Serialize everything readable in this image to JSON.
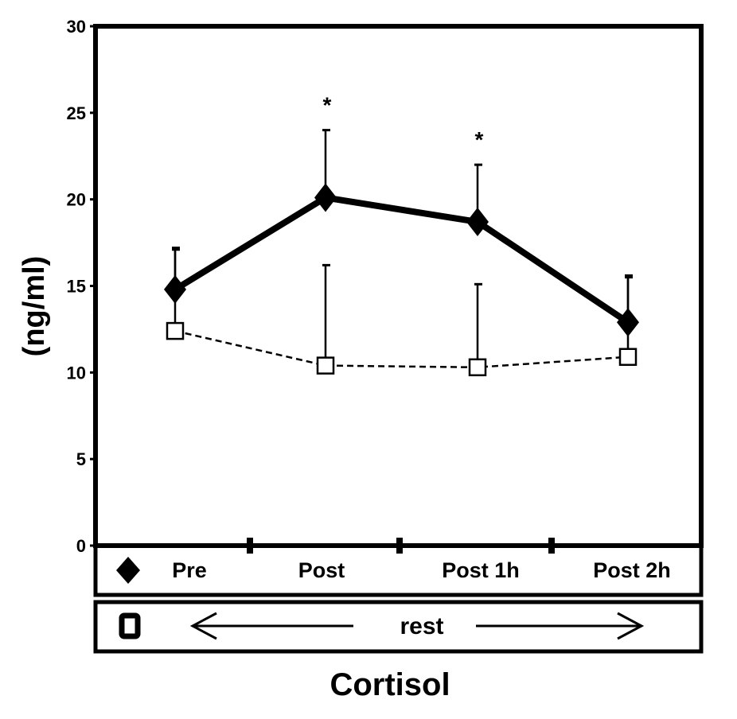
{
  "chart_data": {
    "type": "line",
    "title": "Cortisol",
    "ylabel": "(ng/ml)",
    "xlabel": "",
    "ylim": [
      0,
      30
    ],
    "yticks": [
      "0",
      "5",
      "10",
      "15",
      "20",
      "25",
      "30"
    ],
    "categories": [
      "Pre",
      "Post",
      "Post 1h",
      "Post 2h"
    ],
    "series": [
      {
        "marker": "filled-diamond",
        "line_style": "solid",
        "values": [
          14.8,
          20.1,
          18.7,
          12.9
        ],
        "error_upper": [
          17.1,
          24.0,
          22.0,
          15.5
        ]
      },
      {
        "marker": "open-square",
        "line_style": "dashed",
        "values": [
          12.4,
          10.4,
          10.3,
          10.9
        ],
        "error_upper": [
          17.2,
          16.2,
          15.1,
          15.6
        ]
      }
    ],
    "significance": [
      "",
      "*",
      "*",
      ""
    ],
    "rest_label": "rest",
    "grid": false,
    "colors": {
      "ink": "#000000",
      "background": "#ffffff"
    }
  }
}
